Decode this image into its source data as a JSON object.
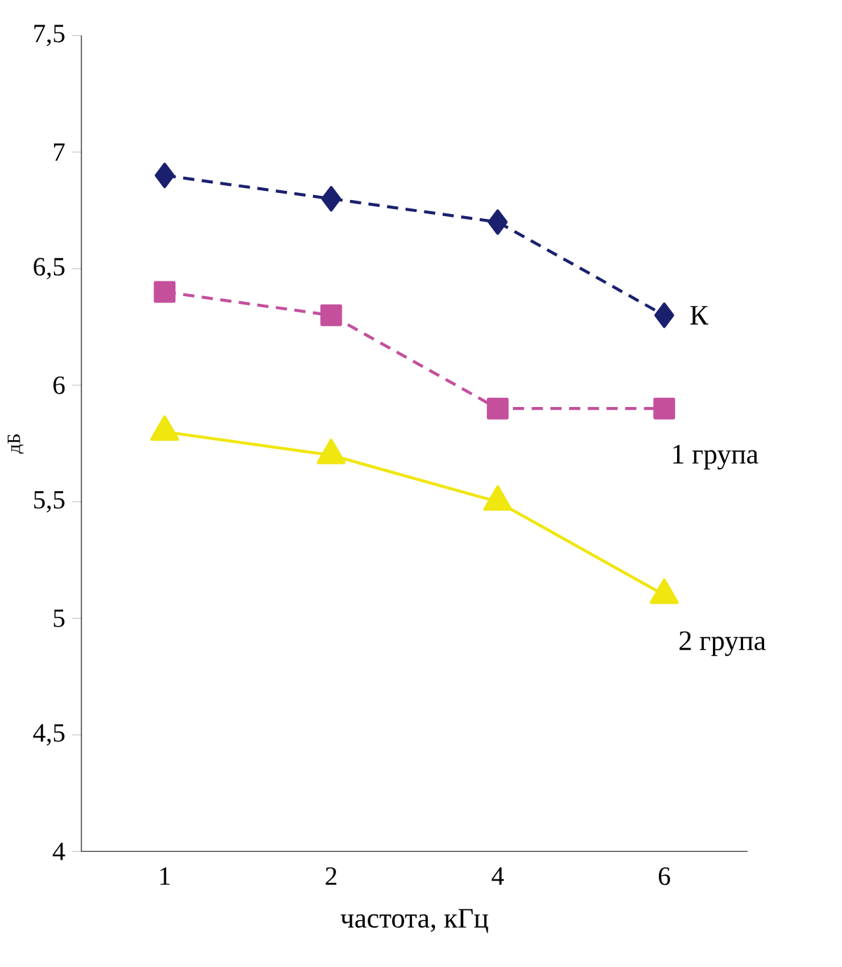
{
  "chart_data": {
    "type": "line",
    "xlabel": "частота, кГц",
    "ylabel": "дБ",
    "categories": [
      "1",
      "2",
      "4",
      "6"
    ],
    "series": [
      {
        "name": "К",
        "color": "#1b206e",
        "marker": "diamond",
        "line_style": "dashed",
        "values": [
          6.9,
          6.8,
          6.7,
          6.3
        ]
      },
      {
        "name": "1 група",
        "color": "#c4509c",
        "marker": "square",
        "line_style": "dashed",
        "values": [
          6.4,
          6.3,
          5.9,
          5.9
        ]
      },
      {
        "name": "2 група",
        "color": "#f0e610",
        "marker": "triangle",
        "line_style": "solid",
        "values": [
          5.8,
          5.7,
          5.5,
          5.1
        ]
      }
    ],
    "ylim": [
      4,
      7.5
    ],
    "yticks": [
      4,
      {
        "value": 4.5,
        "label": "4,5"
      },
      5,
      {
        "value": 5.5,
        "label": "5,5"
      },
      6,
      {
        "value": 6.5,
        "label": "6,5"
      },
      7,
      {
        "value": 7.5,
        "label": "7,5"
      }
    ],
    "grid": false,
    "legend": false
  }
}
